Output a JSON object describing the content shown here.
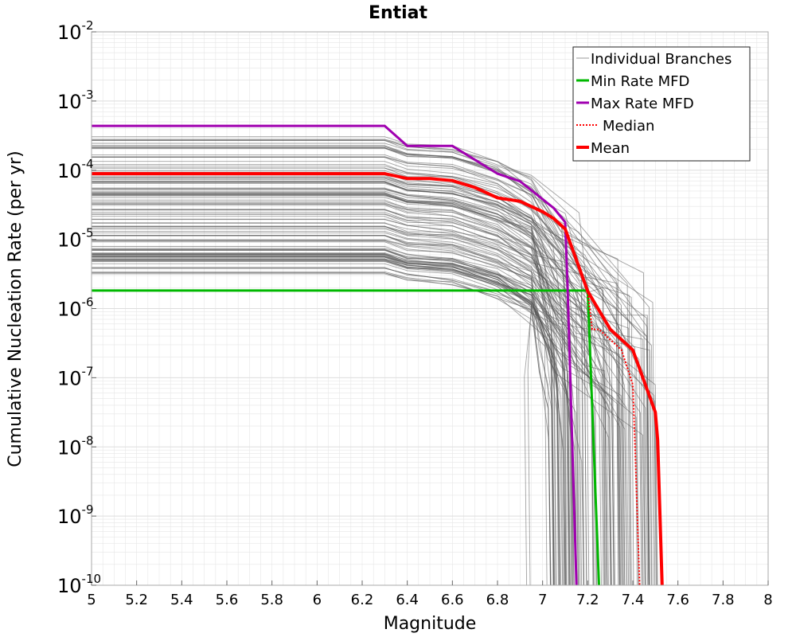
{
  "chart_data": {
    "type": "line",
    "title": "Entiat",
    "xlabel": "Magnitude",
    "ylabel": "Cumulative Nucleation Rate (per yr)",
    "xlim": [
      5,
      8
    ],
    "ylim_log10": [
      -10,
      -2
    ],
    "y_scale": "log",
    "grid": true,
    "legend_position": "top-right",
    "x_ticks": [
      5,
      5.2,
      5.4,
      5.6,
      5.8,
      6,
      6.2,
      6.4,
      6.6,
      6.8,
      7,
      7.2,
      7.4,
      7.6,
      7.8,
      8
    ],
    "x_tick_labels": [
      "5",
      "5.2",
      "5.4",
      "5.6",
      "5.8",
      "6",
      "6.2",
      "6.4",
      "6.6",
      "6.8",
      "7",
      "7.2",
      "7.4",
      "7.6",
      "7.8",
      "8"
    ],
    "y_tick_exponents": [
      -2,
      -3,
      -4,
      -5,
      -6,
      -7,
      -8,
      -9,
      -10
    ],
    "y_tick_base": "10",
    "colors": {
      "branches": "#555555",
      "min": "#00b800",
      "max": "#a000b0",
      "median": "#ff0000",
      "mean": "#ff0000",
      "grid": "#e6e6e6",
      "axis": "#aaaaaa"
    },
    "legend": [
      {
        "label": "Individual Branches",
        "style": "thin-gray"
      },
      {
        "label": "Min Rate MFD",
        "style": "green"
      },
      {
        "label": "Max Rate MFD",
        "style": "purple"
      },
      {
        "label": "Median",
        "style": "dotted-red"
      },
      {
        "label": "Mean",
        "style": "thick-red"
      }
    ],
    "series": [
      {
        "name": "Min Rate MFD",
        "x": [
          5.0,
          7.0,
          7.2,
          7.21,
          7.25
        ],
        "log10_y": [
          -5.74,
          -5.74,
          -5.74,
          -6.6,
          -10
        ]
      },
      {
        "name": "Max Rate MFD",
        "x": [
          5.0,
          6.3,
          6.4,
          6.6,
          6.7,
          6.8,
          6.9,
          7.0,
          7.05,
          7.1,
          7.11,
          7.15
        ],
        "log10_y": [
          -3.36,
          -3.36,
          -3.65,
          -3.65,
          -3.85,
          -4.05,
          -4.16,
          -4.42,
          -4.55,
          -4.75,
          -5.6,
          -10
        ]
      },
      {
        "name": "Median",
        "x": [
          5.0,
          6.3,
          6.4,
          6.5,
          6.6,
          6.7,
          6.8,
          6.9,
          7.0,
          7.05,
          7.1,
          7.15,
          7.2,
          7.22,
          7.25,
          7.3,
          7.35,
          7.4,
          7.41,
          7.43
        ],
        "log10_y": [
          -4.05,
          -4.05,
          -4.12,
          -4.12,
          -4.15,
          -4.25,
          -4.4,
          -4.45,
          -4.6,
          -4.7,
          -4.85,
          -5.3,
          -5.75,
          -6.3,
          -6.3,
          -6.45,
          -6.6,
          -7.1,
          -8.0,
          -10
        ]
      },
      {
        "name": "Mean",
        "x": [
          5.0,
          6.3,
          6.4,
          6.5,
          6.6,
          6.7,
          6.8,
          6.9,
          7.0,
          7.05,
          7.1,
          7.15,
          7.2,
          7.3,
          7.4,
          7.5,
          7.51,
          7.53
        ],
        "log10_y": [
          -4.05,
          -4.05,
          -4.12,
          -4.12,
          -4.15,
          -4.25,
          -4.4,
          -4.45,
          -4.6,
          -4.7,
          -4.85,
          -5.3,
          -5.75,
          -6.3,
          -6.6,
          -7.5,
          -7.9,
          -10
        ]
      }
    ],
    "branch_bands": [
      {
        "name": "upper-band",
        "count": 80,
        "start_log10_min": -4.95,
        "start_log10_max": -3.5,
        "drop_x_min": 7.0,
        "drop_x_max": 7.52
      },
      {
        "name": "lower-band",
        "count": 40,
        "start_log10_min": -5.5,
        "start_log10_max": -5.0,
        "drop_x_min": 6.9,
        "drop_x_max": 7.45
      }
    ]
  }
}
